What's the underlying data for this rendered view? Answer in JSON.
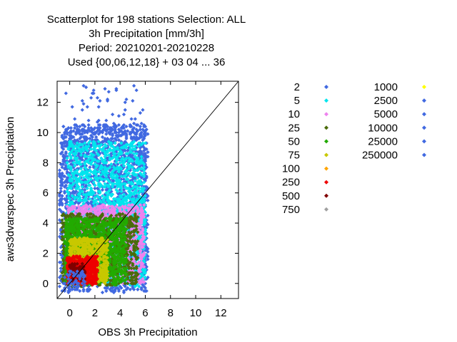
{
  "chart_data": {
    "type": "scatter",
    "title_lines": [
      "Scatterplot for  198 stations Selection: ALL",
      "3h Precipitation [mm/3h]",
      "Period: 20210201-20210228",
      "Used {00,06,12,18} + 03 04 ... 36"
    ],
    "xlabel": "OBS 3h Precipitation",
    "ylabel": "aws3dvarspec 3h Precipitation",
    "xlim": [
      -1,
      13.4
    ],
    "ylim": [
      -1,
      13.4
    ],
    "xticks": [
      0,
      2,
      4,
      6,
      8,
      10,
      12
    ],
    "yticks": [
      0,
      2,
      4,
      6,
      8,
      10,
      12
    ],
    "diagonal": true,
    "legend": [
      {
        "label": "2",
        "color": "#4169e1"
      },
      {
        "label": "5",
        "color": "#00e5ee"
      },
      {
        "label": "10",
        "color": "#ee82ee"
      },
      {
        "label": "25",
        "color": "#4b6b0b"
      },
      {
        "label": "50",
        "color": "#22aa00"
      },
      {
        "label": "75",
        "color": "#c8c800"
      },
      {
        "label": "100",
        "color": "#ffa500"
      },
      {
        "label": "250",
        "color": "#ee0000"
      },
      {
        "label": "500",
        "color": "#800000"
      },
      {
        "label": "750",
        "color": "#a0a0a0"
      },
      {
        "label": "1000",
        "color": "#ffff00"
      },
      {
        "label": "2500",
        "color": "#4169e1"
      },
      {
        "label": "5000",
        "color": "#4169e1"
      },
      {
        "label": "10000",
        "color": "#4169e1"
      },
      {
        "label": "25000",
        "color": "#4169e1"
      },
      {
        "label": "250000",
        "color": "#4169e1"
      }
    ],
    "layers": [
      {
        "count_class": "2",
        "color": "#4169e1",
        "regions": [
          [
            -0.8,
            6.2,
            -0.6,
            10.5,
            2200
          ],
          [
            -0.5,
            6.0,
            6,
            13.2,
            90
          ],
          [
            4.5,
            6.1,
            -0.4,
            2.5,
            120
          ]
        ]
      },
      {
        "count_class": "5",
        "color": "#00e5ee",
        "regions": [
          [
            -0.2,
            6.0,
            0,
            9.4,
            1400
          ],
          [
            3,
            6,
            -0.2,
            5.6,
            500
          ]
        ]
      },
      {
        "count_class": "10",
        "color": "#ee82ee",
        "regions": [
          [
            -0.2,
            5.9,
            0,
            5.2,
            1200
          ]
        ]
      },
      {
        "count_class": "25",
        "color": "#4b6b0b",
        "regions": [
          [
            -0.6,
            5.4,
            -0.2,
            4.6,
            1000
          ]
        ]
      },
      {
        "count_class": "50",
        "color": "#22aa00",
        "regions": [
          [
            -0.4,
            4.5,
            -0.1,
            4.3,
            1200
          ]
        ]
      },
      {
        "count_class": "75",
        "color": "#c8c800",
        "regions": [
          [
            0,
            3,
            0,
            3.0,
            700
          ]
        ]
      },
      {
        "count_class": "250",
        "color": "#ee0000",
        "regions": [
          [
            -0.2,
            2.2,
            -0.1,
            1.8,
            550
          ]
        ]
      },
      {
        "count_class": "500",
        "color": "#800000",
        "regions": [
          [
            0,
            1.2,
            0,
            1.3,
            90
          ]
        ]
      },
      {
        "count_class": "2",
        "color": "#4169e1",
        "regions": [
          [
            -0.5,
            1.2,
            -0.5,
            0.8,
            60
          ]
        ]
      }
    ]
  }
}
